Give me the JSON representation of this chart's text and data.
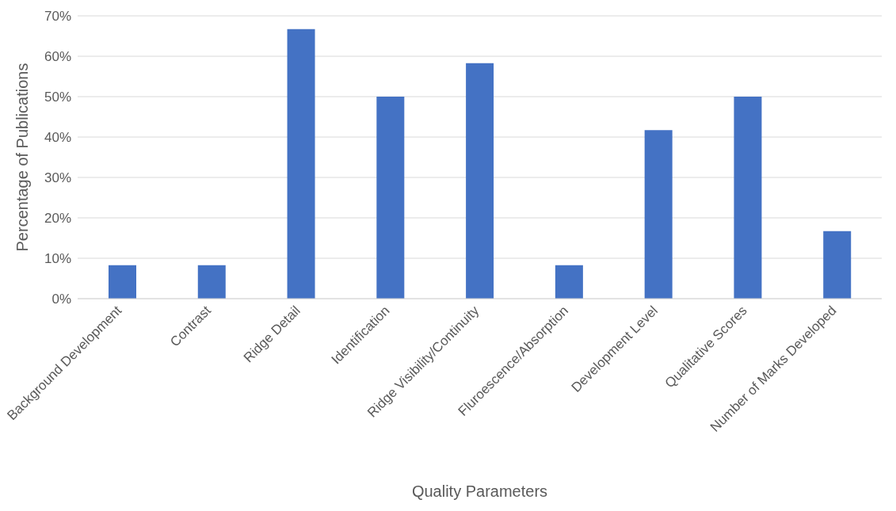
{
  "chart_data": {
    "type": "bar",
    "xlabel": "Quality Parameters",
    "ylabel": "Percentage of Publications",
    "categories": [
      "Background Development",
      "Contrast",
      "Ridge Detail",
      "Identification",
      "Ridge Visibility/Continuity",
      "Fluroescence/Absorption",
      "Development Level",
      "Qualitative Scores",
      "Number of Marks Developed"
    ],
    "values": [
      8.3,
      8.3,
      66.7,
      50,
      58.3,
      8.3,
      41.7,
      50,
      16.7
    ],
    "color": "#4472c4",
    "ylim": [
      0,
      70
    ],
    "yticks": [
      {
        "value": 0,
        "label": "0%"
      },
      {
        "value": 10,
        "label": "10%"
      },
      {
        "value": 20,
        "label": "20%"
      },
      {
        "value": 30,
        "label": "30%"
      },
      {
        "value": 40,
        "label": "40%"
      },
      {
        "value": 50,
        "label": "50%"
      },
      {
        "value": 60,
        "label": "60%"
      },
      {
        "value": 70,
        "label": "70%"
      }
    ],
    "grid": "y"
  }
}
